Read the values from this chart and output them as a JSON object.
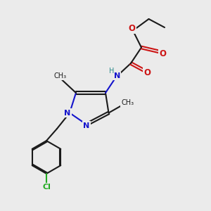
{
  "bg_color": "#ebebeb",
  "bond_color": "#1a1a1a",
  "n_color": "#1414cc",
  "o_color": "#cc1414",
  "cl_color": "#22aa22",
  "h_color": "#2a8a8a",
  "lw": 1.5,
  "dbo": 0.06,
  "xlim": [
    0,
    10
  ],
  "ylim": [
    0,
    10
  ]
}
